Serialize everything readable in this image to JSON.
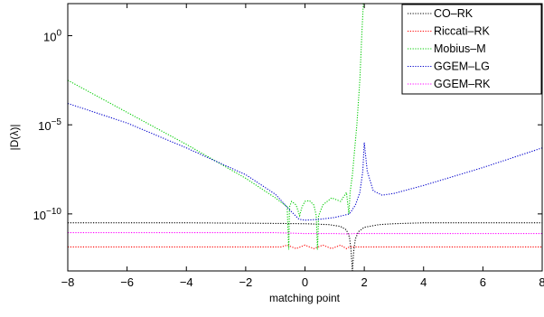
{
  "chart_data": {
    "type": "line",
    "title": "",
    "xlabel": "matching point",
    "ylabel": "|D(λ)|",
    "xlim": [
      -8,
      8
    ],
    "ylim_log10": [
      -13.2,
      1.8
    ],
    "y_scale": "log",
    "grid": false,
    "legend_position": "top-right",
    "x_ticks": [
      -8,
      -6,
      -4,
      -2,
      0,
      2,
      4,
      6,
      8
    ],
    "x_tick_labels": [
      "−8",
      "−6",
      "−4",
      "−2",
      "0",
      "2",
      "4",
      "6",
      "8"
    ],
    "y_ticks_log10": [
      0,
      -5,
      -10
    ],
    "y_tick_labels": [
      {
        "base": "10",
        "exp": "0"
      },
      {
        "base": "10",
        "exp": "−5"
      },
      {
        "base": "10",
        "exp": "−10"
      }
    ],
    "series": [
      {
        "name": "CO–RK",
        "color": "#000000",
        "x": [
          -8,
          -6,
          -4,
          -2,
          0,
          0.8,
          1.2,
          1.4,
          1.5,
          1.55,
          1.6,
          1.65,
          1.7,
          1.8,
          2.0,
          2.5,
          3,
          4,
          6,
          8
        ],
        "log10_y": [
          -10.5,
          -10.5,
          -10.5,
          -10.52,
          -10.55,
          -10.6,
          -10.7,
          -10.9,
          -11.3,
          -12.0,
          -13.2,
          -12.0,
          -11.4,
          -11.0,
          -10.75,
          -10.6,
          -10.55,
          -10.5,
          -10.5,
          -10.5
        ]
      },
      {
        "name": "Riccati–RK",
        "color": "#ff0000",
        "x": [
          -8,
          -2,
          -0.8,
          -0.6,
          -0.3,
          0,
          0.3,
          0.6,
          0.9,
          1.2,
          1.4,
          1.5,
          1.6,
          2,
          4,
          8
        ],
        "log10_y": [
          -11.85,
          -11.85,
          -11.85,
          -11.75,
          -11.95,
          -11.75,
          -11.95,
          -11.75,
          -11.95,
          -11.75,
          -11.95,
          -11.85,
          -11.85,
          -11.85,
          -11.85,
          -11.85
        ]
      },
      {
        "name": "Mobius–M",
        "color": "#00cc00",
        "x": [
          -8,
          -6,
          -4,
          -2,
          -1,
          -0.6,
          -0.55,
          -0.52,
          -0.45,
          -0.3,
          -0.18,
          -0.1,
          0,
          0.15,
          0.3,
          0.38,
          0.42,
          0.46,
          0.6,
          0.9,
          1.2,
          1.4,
          1.48,
          1.52,
          1.6,
          1.75,
          1.85,
          1.92,
          1.97,
          2.0,
          2.02
        ],
        "log10_y": [
          -2.5,
          -4.3,
          -6.1,
          -8.0,
          -9.1,
          -9.6,
          -12.0,
          -9.6,
          -9.3,
          -9.5,
          -10.1,
          -9.6,
          -9.3,
          -9.25,
          -9.5,
          -10.1,
          -12.0,
          -10.1,
          -9.5,
          -9.1,
          -9.3,
          -8.8,
          -10.0,
          -8.8,
          -7.8,
          -5.0,
          -2.5,
          0.2,
          1.8,
          1.8,
          1.8
        ]
      },
      {
        "name": "GGEM–LG",
        "color": "#0000cc",
        "x": [
          -8,
          -6,
          -4,
          -2,
          -1,
          -0.5,
          -0.2,
          0,
          0.5,
          1,
          1.5,
          1.7,
          1.85,
          1.95,
          2.0,
          2.1,
          2.3,
          2.6,
          3,
          4,
          6,
          8
        ],
        "log10_y": [
          -3.8,
          -4.9,
          -6.3,
          -7.8,
          -8.9,
          -9.8,
          -10.3,
          -10.35,
          -10.3,
          -10.2,
          -10.0,
          -9.5,
          -8.8,
          -7.6,
          -6.0,
          -7.6,
          -8.7,
          -8.95,
          -8.85,
          -8.4,
          -7.4,
          -6.3
        ]
      },
      {
        "name": "GGEM–RK",
        "color": "#ff00ff",
        "x": [
          -8,
          -4,
          -1,
          0,
          1,
          1.5,
          1.6,
          2,
          4,
          8
        ],
        "log10_y": [
          -11.05,
          -11.05,
          -11.05,
          -11.1,
          -11.1,
          -11.12,
          -11.1,
          -11.1,
          -11.1,
          -11.1
        ]
      }
    ]
  }
}
